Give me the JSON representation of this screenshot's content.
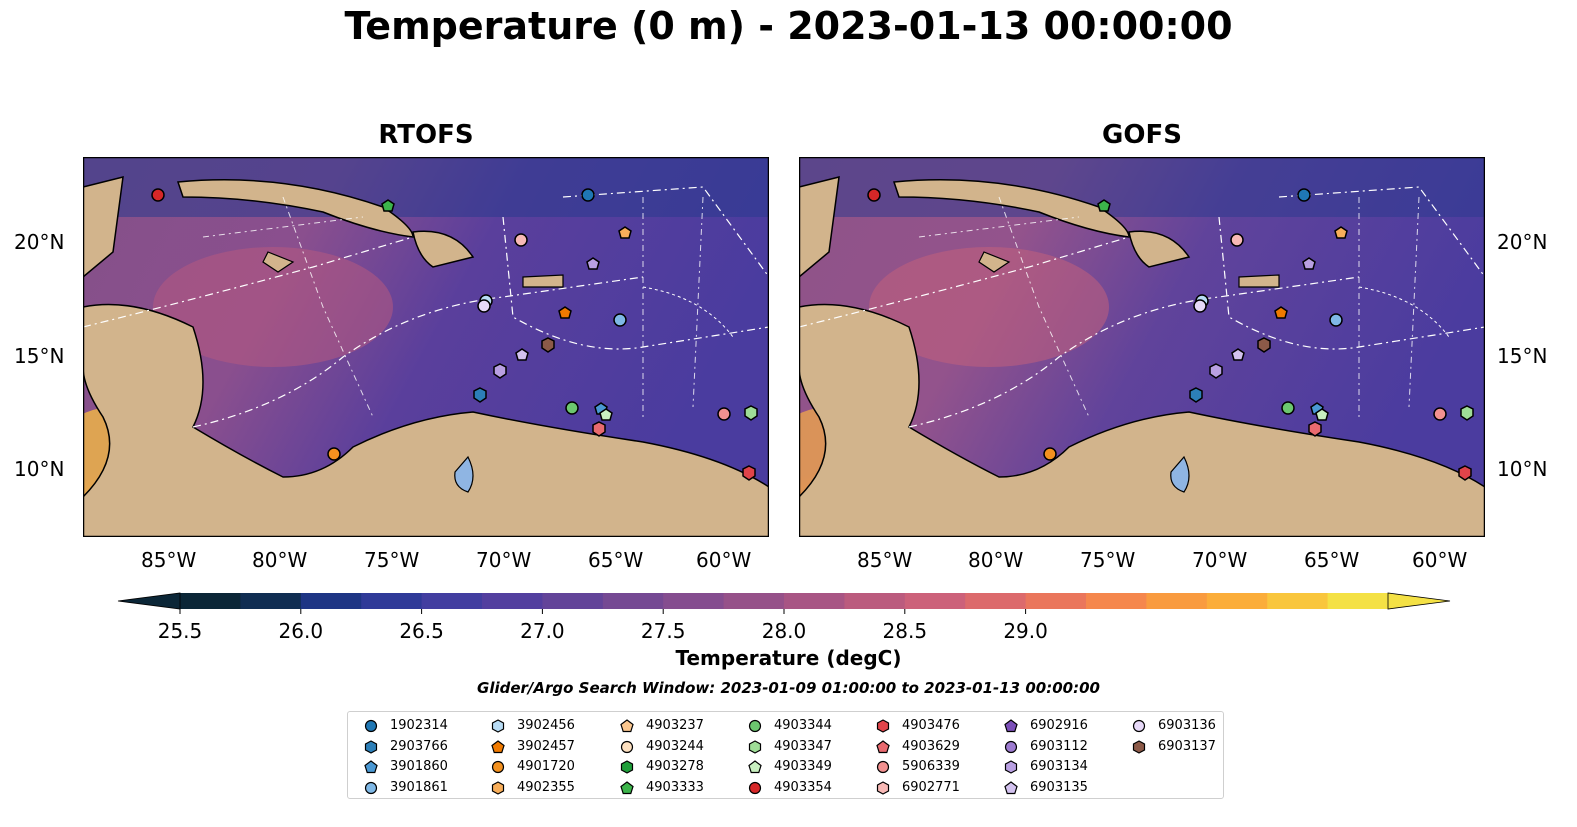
{
  "title": "Temperature (0 m) - 2023-01-13 00:00:00",
  "panels": [
    {
      "title": "RTOFS",
      "lat_labels_side": "left"
    },
    {
      "title": "GOFS",
      "lat_labels_side": "right"
    }
  ],
  "lon_labels": [
    "85°W",
    "80°W",
    "75°W",
    "70°W",
    "65°W",
    "60°W"
  ],
  "lat_labels": [
    "20°N",
    "15°N",
    "10°N"
  ],
  "colorbar": {
    "label": "Temperature (degC)",
    "ticks": [
      "25.5",
      "26.0",
      "26.5",
      "27.0",
      "27.5",
      "28.0",
      "28.5",
      "29.0"
    ],
    "colors": [
      "#0b2637",
      "#102d52",
      "#1e3584",
      "#2f3a98",
      "#423ea0",
      "#533f9f",
      "#634499",
      "#754993",
      "#854d8f",
      "#965189",
      "#a85584",
      "#bb5b7e",
      "#cc617a",
      "#dc6a6c",
      "#ea765c",
      "#f5874d",
      "#f99b3f",
      "#fbad3a",
      "#f9c63d",
      "#f4e145"
    ],
    "extend": "both"
  },
  "search_window": "Glider/Argo Search Window: 2023-01-09 01:00:00 to 2023-01-13 00:00:00",
  "legend": [
    {
      "id": "1902314",
      "marker": "circle",
      "color": "#1f77b4"
    },
    {
      "id": "2903766",
      "marker": "hexagon",
      "color": "#2c7fb8"
    },
    {
      "id": "3901860",
      "marker": "pentagon",
      "color": "#4a98d3"
    },
    {
      "id": "3901861",
      "marker": "circle",
      "color": "#7fb8e6"
    },
    {
      "id": "3902456",
      "marker": "hexagon",
      "color": "#b8dcf5"
    },
    {
      "id": "3902457",
      "marker": "pentagon",
      "color": "#f07a00"
    },
    {
      "id": "4901720",
      "marker": "circle",
      "color": "#f3911f"
    },
    {
      "id": "4902355",
      "marker": "hexagon",
      "color": "#f8ae5a"
    },
    {
      "id": "4903237",
      "marker": "pentagon",
      "color": "#fbc78f"
    },
    {
      "id": "4903244",
      "marker": "circle",
      "color": "#fde0c0"
    },
    {
      "id": "4903278",
      "marker": "hexagon",
      "color": "#1f9e3a"
    },
    {
      "id": "4903333",
      "marker": "pentagon",
      "color": "#3cb44b"
    },
    {
      "id": "4903344",
      "marker": "circle",
      "color": "#6cc76f"
    },
    {
      "id": "4903347",
      "marker": "hexagon",
      "color": "#9fdd97"
    },
    {
      "id": "4903349",
      "marker": "pentagon",
      "color": "#c9f0c0"
    },
    {
      "id": "4903354",
      "marker": "circle",
      "color": "#d62728"
    },
    {
      "id": "4903476",
      "marker": "hexagon",
      "color": "#e0444a"
    },
    {
      "id": "4903629",
      "marker": "pentagon",
      "color": "#e96a6f"
    },
    {
      "id": "5906339",
      "marker": "circle",
      "color": "#f29190"
    },
    {
      "id": "6902771",
      "marker": "hexagon",
      "color": "#f8b9b6"
    },
    {
      "id": "6902916",
      "marker": "pentagon",
      "color": "#7b4fb8"
    },
    {
      "id": "6903112",
      "marker": "circle",
      "color": "#9d7bd0"
    },
    {
      "id": "6903134",
      "marker": "hexagon",
      "color": "#b9a0e2"
    },
    {
      "id": "6903135",
      "marker": "pentagon",
      "color": "#d3c2ef"
    },
    {
      "id": "6903136",
      "marker": "circle",
      "color": "#e7d9f8"
    },
    {
      "id": "6903137",
      "marker": "hexagon",
      "color": "#8c5a48"
    }
  ]
}
